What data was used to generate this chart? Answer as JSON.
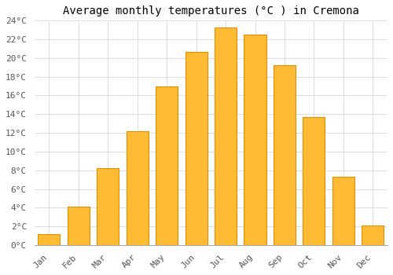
{
  "title": "Average monthly temperatures (°C ) in Cremona",
  "months": [
    "Jan",
    "Feb",
    "Mar",
    "Apr",
    "May",
    "Jun",
    "Jul",
    "Aug",
    "Sep",
    "Oct",
    "Nov",
    "Dec"
  ],
  "temperatures": [
    1.2,
    4.1,
    8.2,
    12.2,
    17.0,
    20.7,
    23.3,
    22.5,
    19.2,
    13.7,
    7.3,
    2.1
  ],
  "bar_color": "#FFBB33",
  "bar_edge_color": "#E09000",
  "background_color": "#FFFFFF",
  "plot_bg_color": "#FFFFFF",
  "ylim": [
    0,
    24
  ],
  "yticks": [
    0,
    2,
    4,
    6,
    8,
    10,
    12,
    14,
    16,
    18,
    20,
    22,
    24
  ],
  "ytick_labels": [
    "0°C",
    "2°C",
    "4°C",
    "6°C",
    "8°C",
    "10°C",
    "12°C",
    "14°C",
    "16°C",
    "18°C",
    "20°C",
    "22°C",
    "24°C"
  ],
  "grid_color": "#DDDDDD",
  "title_fontsize": 10,
  "tick_fontsize": 8
}
